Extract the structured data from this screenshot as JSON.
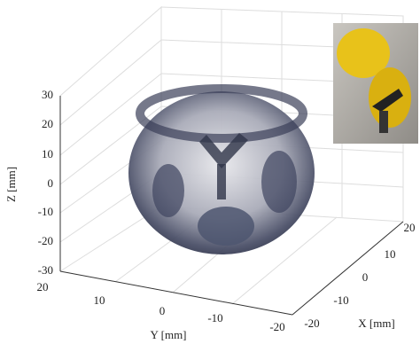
{
  "z_axis": {
    "label": "Z [mm]",
    "ticks": [
      30,
      20,
      10,
      0,
      -10,
      -20,
      -30
    ]
  },
  "y_axis": {
    "label": "Y [mm]",
    "ticks": [
      20,
      10,
      0,
      -10,
      -20
    ]
  },
  "x_axis": {
    "label": "X [mm]",
    "ticks": [
      -20,
      -10,
      0,
      10,
      20
    ]
  }
}
